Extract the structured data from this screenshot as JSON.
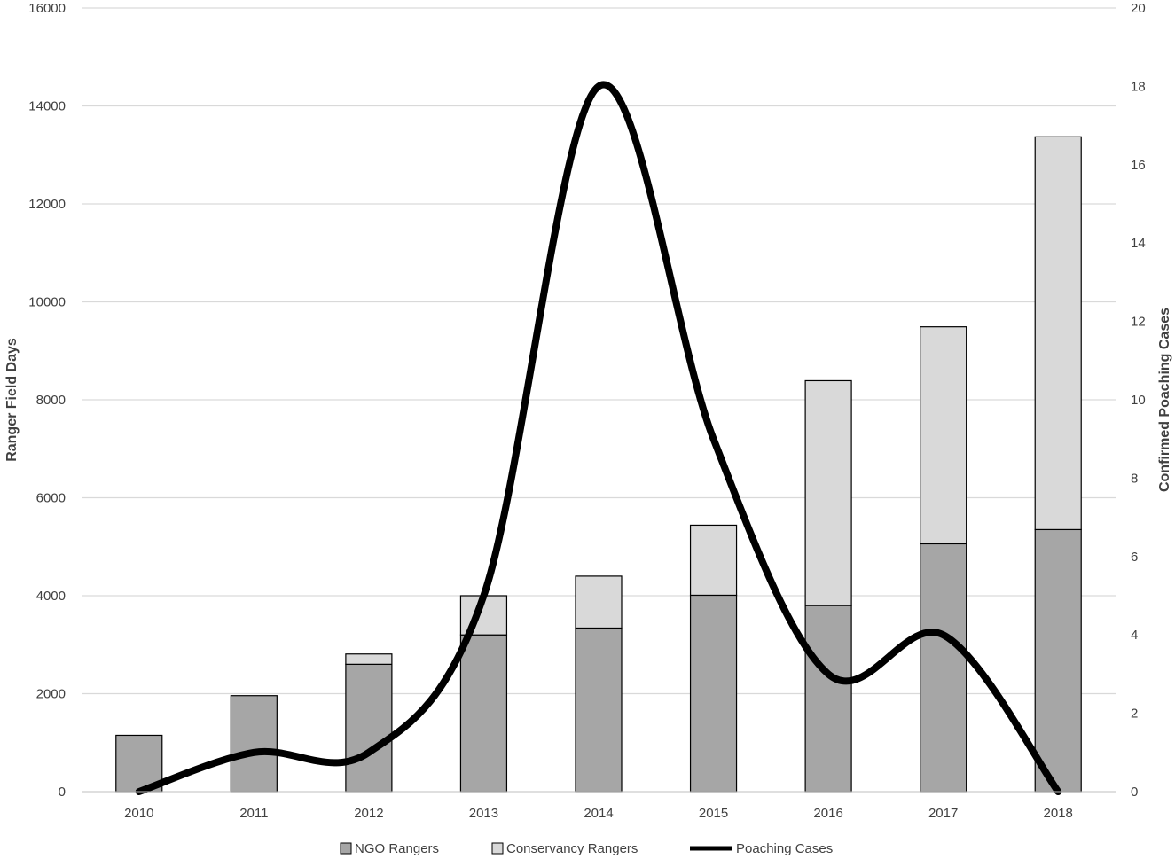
{
  "chart_data": {
    "type": "bar",
    "stacked": true,
    "categories": [
      "2010",
      "2011",
      "2012",
      "2013",
      "2014",
      "2015",
      "2016",
      "2017",
      "2018"
    ],
    "series": [
      {
        "name": "NGO Rangers",
        "type": "bar",
        "axis": "left",
        "color": "#a6a6a6",
        "values": [
          1150,
          1960,
          2600,
          3200,
          3340,
          4010,
          3800,
          5060,
          5350
        ]
      },
      {
        "name": "Conservancy Rangers",
        "type": "bar",
        "axis": "left",
        "color": "#d9d9d9",
        "values": [
          0,
          0,
          210,
          800,
          1060,
          1430,
          4590,
          4430,
          8020
        ]
      },
      {
        "name": "Poaching Cases",
        "type": "line",
        "axis": "right",
        "color": "#000000",
        "values": [
          0,
          1,
          1,
          5,
          18,
          9,
          3,
          4,
          0
        ]
      }
    ],
    "ylabel": "Ranger Field Days",
    "y2label": "Confirmed Poaching Cases",
    "ylim": [
      0,
      16000
    ],
    "y2lim": [
      0,
      20
    ],
    "yticks": [
      "0",
      "2000",
      "4000",
      "6000",
      "8000",
      "10000",
      "12000",
      "14000",
      "16000"
    ],
    "y2ticks": [
      "0",
      "2",
      "4",
      "6",
      "8",
      "10",
      "12",
      "14",
      "16",
      "18",
      "20"
    ],
    "grid": true,
    "legend": "bottom"
  }
}
